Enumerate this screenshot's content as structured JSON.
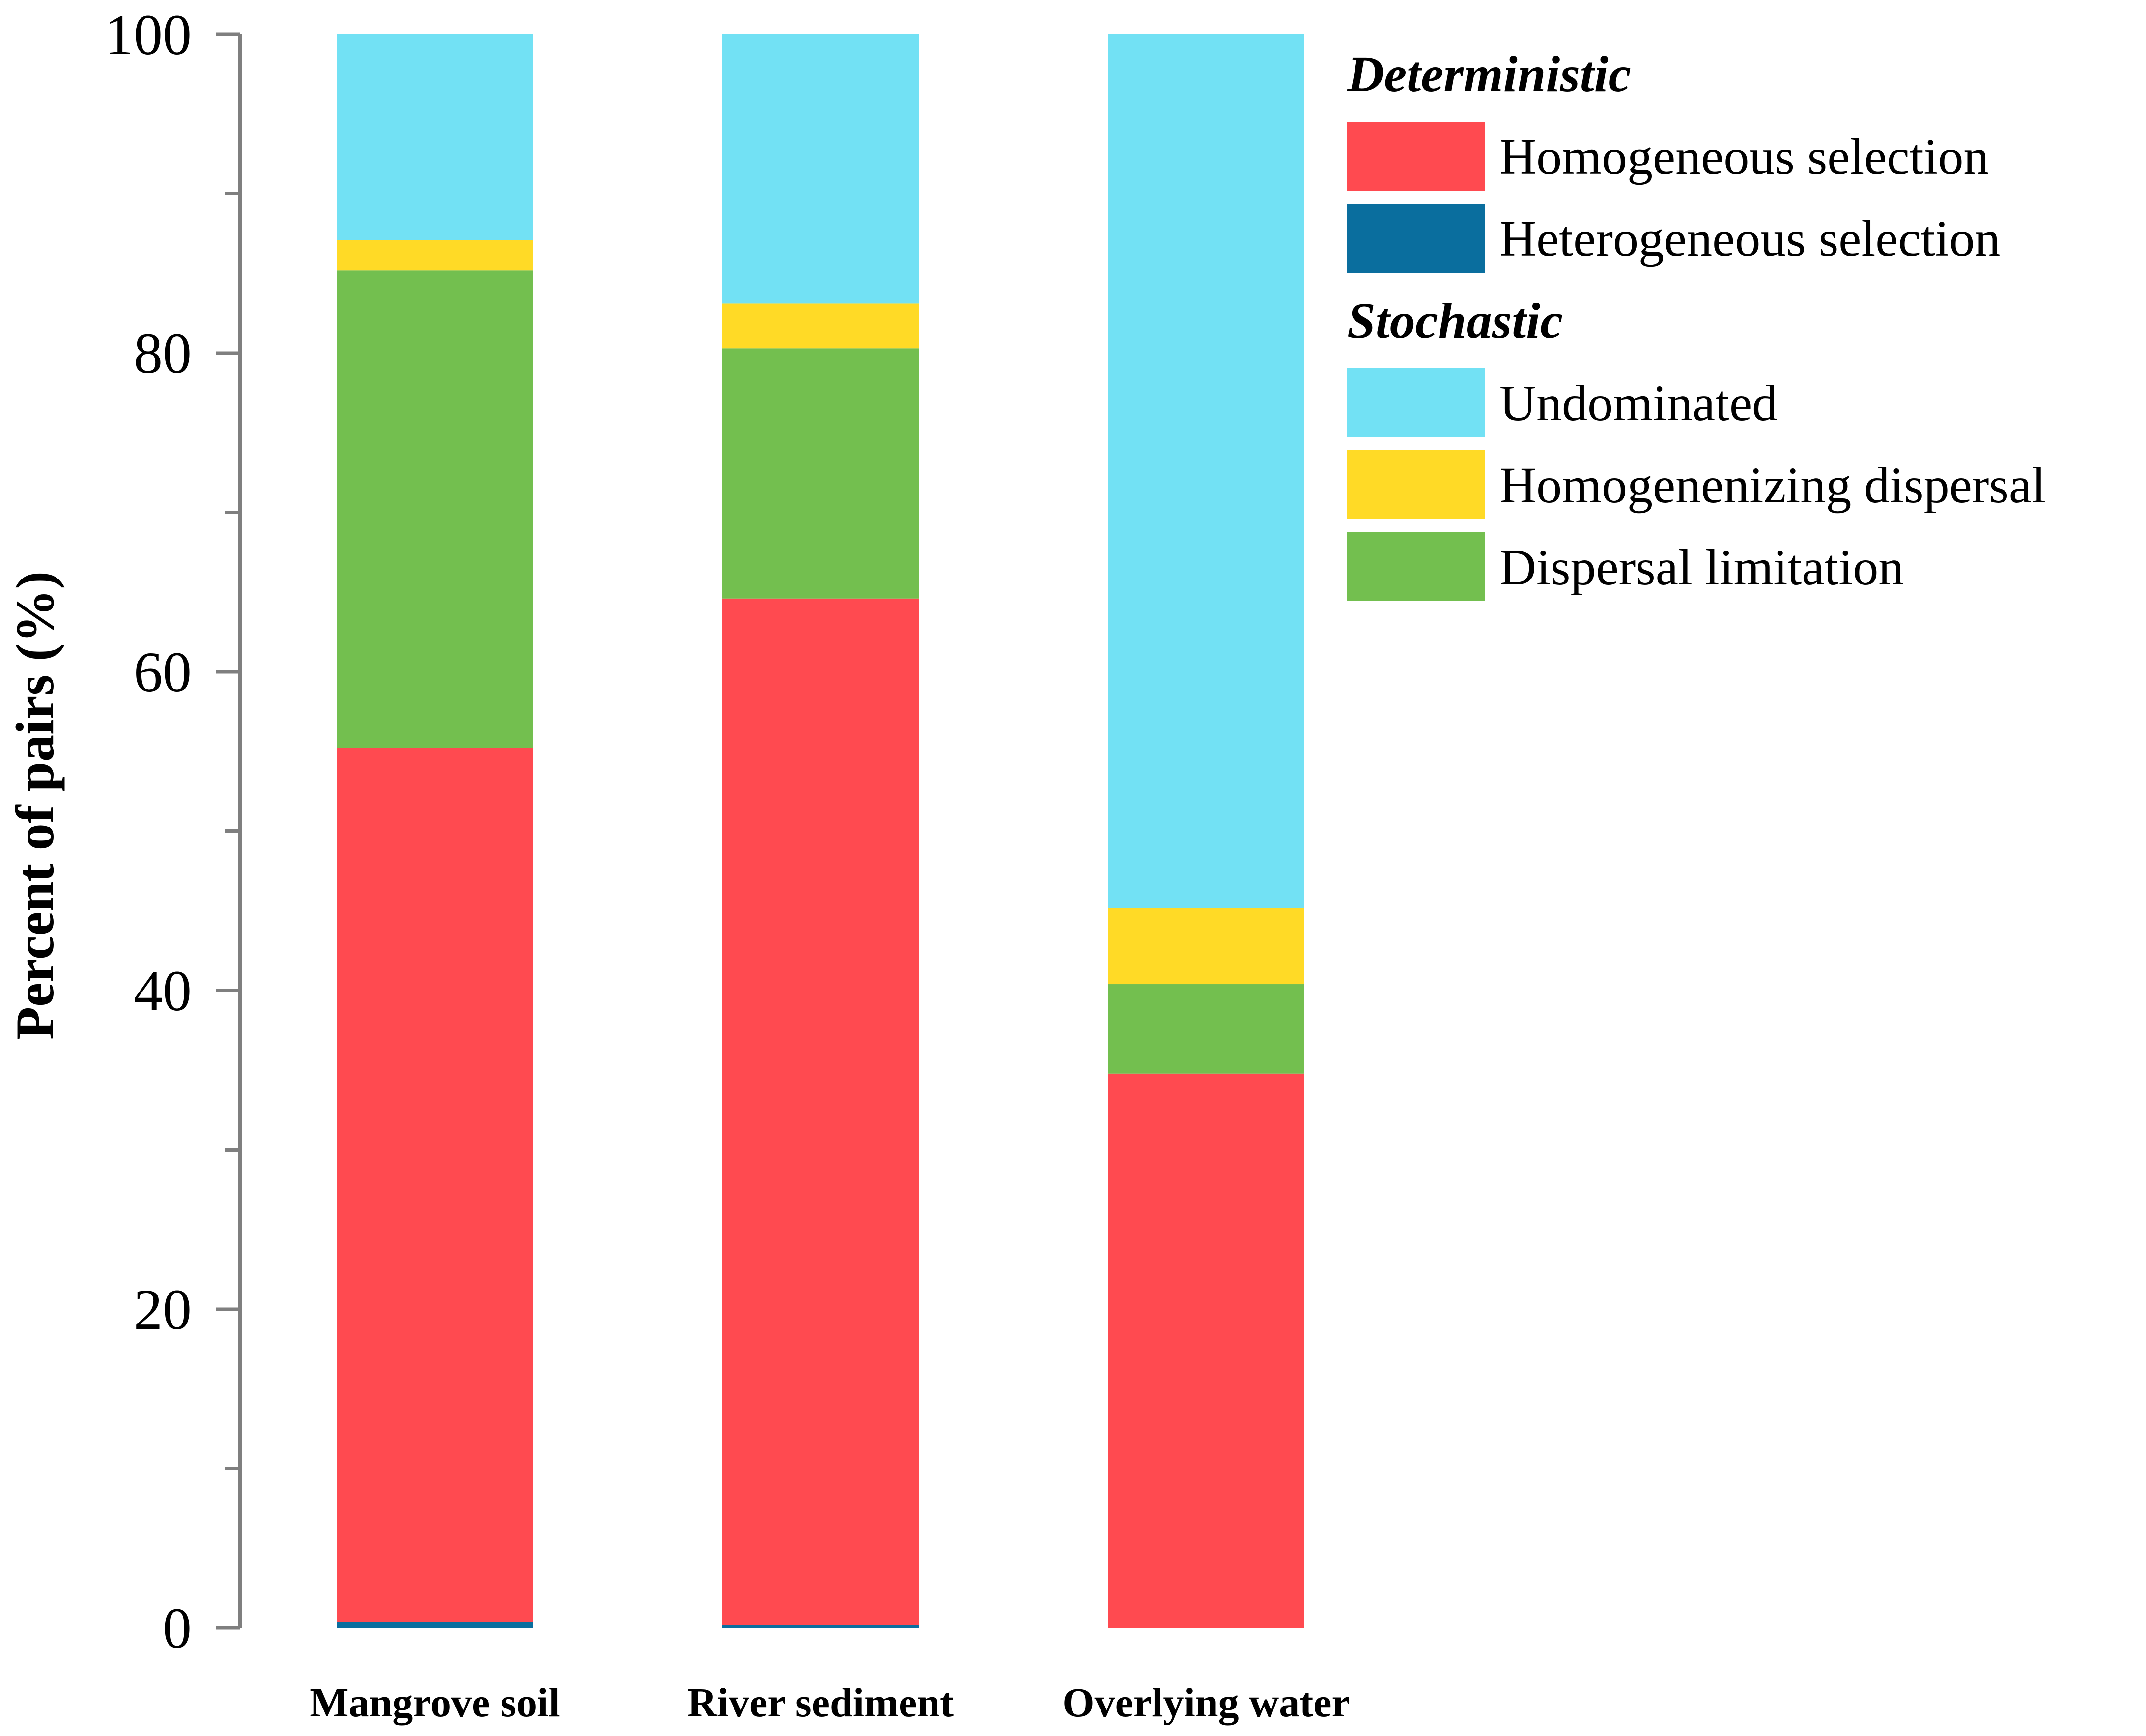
{
  "chart_data": {
    "type": "bar",
    "stacked": true,
    "title": "",
    "xlabel": "",
    "ylabel": "Percent of pairs (%)",
    "ylim": [
      0,
      100
    ],
    "yticks": [
      0,
      20,
      40,
      60,
      80,
      100
    ],
    "grid": false,
    "legend_position": "top-right",
    "categories": [
      "Mangrove soil",
      "River sediment",
      "Overlying water"
    ],
    "legend_groups": [
      {
        "title": "Deterministic",
        "series": [
          "Homogeneous selection",
          "Heterogeneous selection"
        ]
      },
      {
        "title": "Stochastic",
        "series": [
          "Undominated",
          "Homogenenizing dispersal",
          "Dispersal limitation"
        ]
      }
    ],
    "stack_order": [
      "Heterogeneous selection",
      "Homogeneous selection",
      "Dispersal limitation",
      "Homogenenizing dispersal",
      "Undominated"
    ],
    "series": [
      {
        "name": "Homogeneous selection",
        "color": "#FF4A50",
        "values": [
          54.8,
          64.4,
          34.8
        ]
      },
      {
        "name": "Heterogeneous selection",
        "color": "#0A6E9E",
        "values": [
          0.4,
          0.2,
          0.0
        ]
      },
      {
        "name": "Undominated",
        "color": "#72E1F4",
        "values": [
          12.9,
          16.9,
          54.8
        ]
      },
      {
        "name": "Homogenenizing dispersal",
        "color": "#FFDA26",
        "values": [
          1.9,
          2.8,
          4.8
        ]
      },
      {
        "name": "Dispersal limitation",
        "color": "#73BF4F",
        "values": [
          30.0,
          15.7,
          5.6
        ]
      }
    ]
  }
}
